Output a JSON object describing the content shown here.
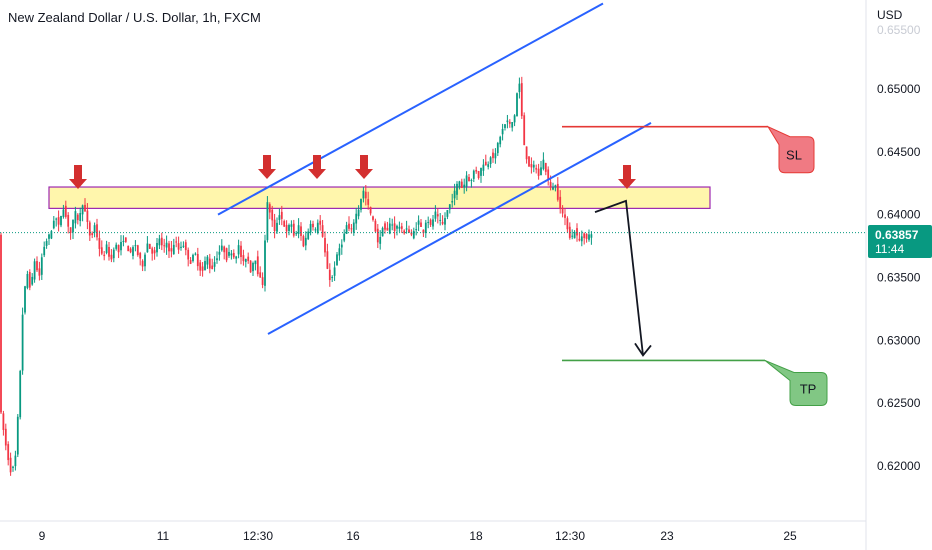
{
  "chart_data": {
    "type": "candlestick",
    "title": "New Zealand Dollar / U.S. Dollar, 1h, FXCM",
    "currency_label": "USD",
    "ylim": [
      0.6186,
      0.657
    ],
    "y_ticks": [
      "0.65000",
      "0.64500",
      "0.64000",
      "0.63500",
      "0.63000",
      "0.62500",
      "0.62000"
    ],
    "y_tick_values": [
      0.65,
      0.645,
      0.64,
      0.635,
      0.63,
      0.625,
      0.62
    ],
    "x_ticks": [
      "9",
      "11",
      "12:30",
      "16",
      "18",
      "12:30",
      "23",
      "25"
    ],
    "current_price": "0.63857",
    "current_time": "11:44",
    "colors": {
      "up": "#089981",
      "down": "#f23645",
      "trend": "#2962ff",
      "sl": "#e53935",
      "tp": "#43a047",
      "zone_fill": "#fff59d",
      "zone_border": "#9c27b0",
      "arrow": "#d32f2f",
      "price_tag": "#089981"
    },
    "path": [
      [
        0,
        0.6235
      ],
      [
        2,
        0.6242
      ],
      [
        8,
        0.6211
      ],
      [
        12,
        0.6196
      ],
      [
        16,
        0.62
      ],
      [
        20,
        0.625
      ],
      [
        24,
        0.6325
      ],
      [
        28,
        0.6355
      ],
      [
        32,
        0.634
      ],
      [
        36,
        0.6365
      ],
      [
        40,
        0.6348
      ],
      [
        44,
        0.6372
      ],
      [
        48,
        0.638
      ],
      [
        52,
        0.6385
      ],
      [
        56,
        0.64
      ],
      [
        60,
        0.639
      ],
      [
        64,
        0.6408
      ],
      [
        68,
        0.6395
      ],
      [
        72,
        0.6385
      ],
      [
        76,
        0.6402
      ],
      [
        80,
        0.6395
      ],
      [
        84,
        0.641
      ],
      [
        88,
        0.6395
      ],
      [
        92,
        0.638
      ],
      [
        96,
        0.6392
      ],
      [
        100,
        0.6375
      ],
      [
        104,
        0.6365
      ],
      [
        108,
        0.6375
      ],
      [
        112,
        0.6362
      ],
      [
        116,
        0.6378
      ],
      [
        120,
        0.637
      ],
      [
        124,
        0.6382
      ],
      [
        128,
        0.6375
      ],
      [
        132,
        0.6368
      ],
      [
        136,
        0.6378
      ],
      [
        140,
        0.6365
      ],
      [
        144,
        0.636
      ],
      [
        148,
        0.6378
      ],
      [
        152,
        0.6372
      ],
      [
        156,
        0.6368
      ],
      [
        160,
        0.6383
      ],
      [
        164,
        0.6372
      ],
      [
        168,
        0.6378
      ],
      [
        172,
        0.6368
      ],
      [
        176,
        0.638
      ],
      [
        180,
        0.6372
      ],
      [
        184,
        0.6378
      ],
      [
        188,
        0.6368
      ],
      [
        192,
        0.6362
      ],
      [
        196,
        0.637
      ],
      [
        200,
        0.6358
      ],
      [
        204,
        0.6355
      ],
      [
        208,
        0.6368
      ],
      [
        212,
        0.6355
      ],
      [
        216,
        0.6363
      ],
      [
        220,
        0.637
      ],
      [
        224,
        0.6375
      ],
      [
        228,
        0.6365
      ],
      [
        232,
        0.6372
      ],
      [
        236,
        0.6365
      ],
      [
        240,
        0.6375
      ],
      [
        244,
        0.636
      ],
      [
        248,
        0.6368
      ],
      [
        252,
        0.6355
      ],
      [
        256,
        0.6368
      ],
      [
        260,
        0.635
      ],
      [
        264,
        0.6345
      ],
      [
        268,
        0.641
      ],
      [
        272,
        0.64
      ],
      [
        276,
        0.6385
      ],
      [
        280,
        0.6402
      ],
      [
        284,
        0.6395
      ],
      [
        288,
        0.6385
      ],
      [
        292,
        0.6395
      ],
      [
        296,
        0.638
      ],
      [
        300,
        0.6392
      ],
      [
        304,
        0.6375
      ],
      [
        308,
        0.6383
      ],
      [
        312,
        0.6395
      ],
      [
        316,
        0.6385
      ],
      [
        320,
        0.6398
      ],
      [
        324,
        0.638
      ],
      [
        328,
        0.636
      ],
      [
        332,
        0.6345
      ],
      [
        336,
        0.636
      ],
      [
        340,
        0.6372
      ],
      [
        344,
        0.638
      ],
      [
        348,
        0.6392
      ],
      [
        352,
        0.6385
      ],
      [
        356,
        0.6398
      ],
      [
        360,
        0.6405
      ],
      [
        364,
        0.642
      ],
      [
        368,
        0.641
      ],
      [
        372,
        0.64
      ],
      [
        376,
        0.639
      ],
      [
        380,
        0.6375
      ],
      [
        384,
        0.6392
      ],
      [
        388,
        0.6385
      ],
      [
        392,
        0.6395
      ],
      [
        396,
        0.6388
      ],
      [
        400,
        0.6392
      ],
      [
        404,
        0.6385
      ],
      [
        408,
        0.639
      ],
      [
        412,
        0.6382
      ],
      [
        416,
        0.6388
      ],
      [
        420,
        0.6395
      ],
      [
        424,
        0.6385
      ],
      [
        428,
        0.6398
      ],
      [
        432,
        0.639
      ],
      [
        436,
        0.6402
      ],
      [
        440,
        0.6395
      ],
      [
        444,
        0.6392
      ],
      [
        448,
        0.6402
      ],
      [
        452,
        0.641
      ],
      [
        456,
        0.6418
      ],
      [
        460,
        0.6428
      ],
      [
        464,
        0.642
      ],
      [
        468,
        0.6432
      ],
      [
        472,
        0.6425
      ],
      [
        476,
        0.6438
      ],
      [
        480,
        0.643
      ],
      [
        484,
        0.6442
      ],
      [
        488,
        0.6438
      ],
      [
        492,
        0.6448
      ],
      [
        496,
        0.6445
      ],
      [
        500,
        0.646
      ],
      [
        504,
        0.6468
      ],
      [
        508,
        0.6475
      ],
      [
        512,
        0.647
      ],
      [
        516,
        0.648
      ],
      [
        520,
        0.651
      ],
      [
        522,
        0.649
      ],
      [
        524,
        0.6465
      ],
      [
        526,
        0.6452
      ],
      [
        528,
        0.6445
      ],
      [
        532,
        0.6435
      ],
      [
        536,
        0.644
      ],
      [
        540,
        0.643
      ],
      [
        544,
        0.6445
      ],
      [
        548,
        0.6432
      ],
      [
        552,
        0.642
      ],
      [
        556,
        0.6425
      ],
      [
        560,
        0.641
      ],
      [
        564,
        0.64
      ],
      [
        568,
        0.6392
      ],
      [
        572,
        0.638
      ],
      [
        576,
        0.6388
      ],
      [
        580,
        0.6378
      ],
      [
        584,
        0.6385
      ],
      [
        588,
        0.638
      ],
      [
        592,
        0.6386
      ]
    ],
    "price_line": 0.63857,
    "resistance_zone": [
      0.6405,
      0.6422
    ],
    "channel_upper": [
      [
        218,
        0.64
      ],
      [
        603,
        0.6568
      ]
    ],
    "channel_lower": [
      [
        268,
        0.6305
      ],
      [
        651,
        0.6473
      ]
    ],
    "stop_loss": {
      "label": "SL",
      "level": 0.647,
      "x": [
        562,
        768
      ]
    },
    "take_profit": {
      "label": "TP",
      "level": 0.6284,
      "x": [
        562,
        765
      ]
    },
    "projection": [
      [
        595,
        0.6402
      ],
      [
        626,
        0.6411
      ],
      [
        643,
        0.6288
      ]
    ],
    "marker_arrows_x": [
      78,
      267,
      317,
      364,
      627
    ]
  }
}
